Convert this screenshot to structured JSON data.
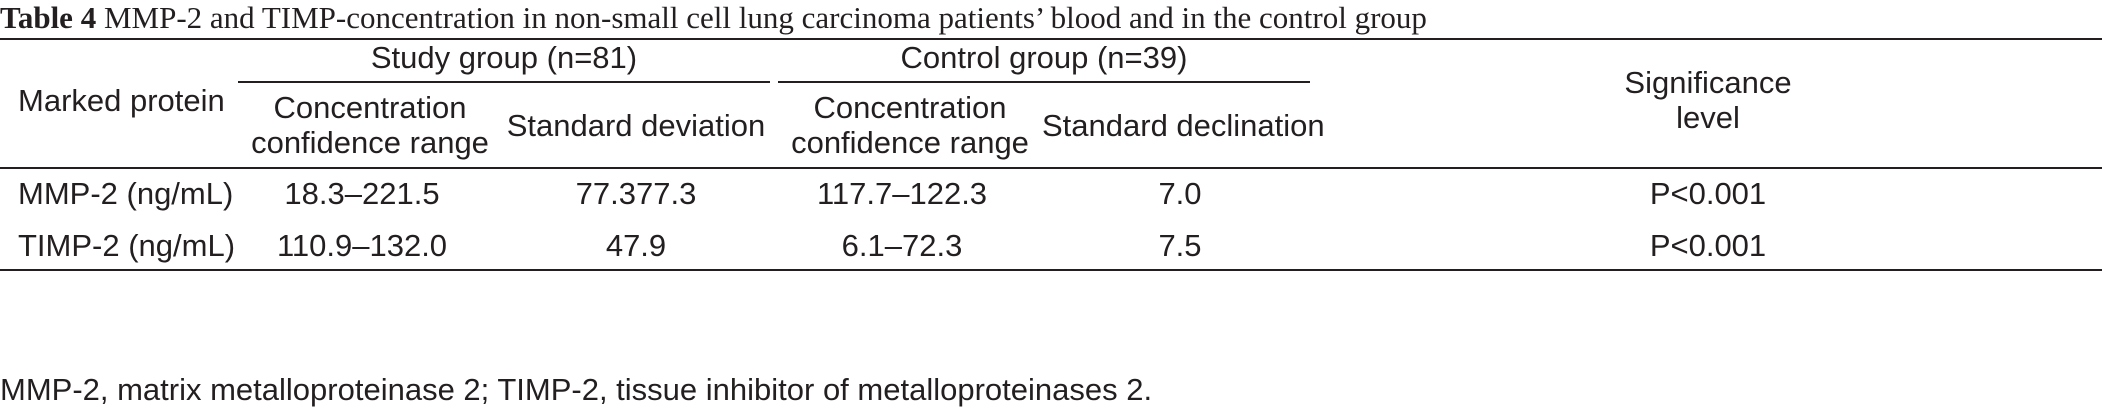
{
  "caption": {
    "label": "Table 4",
    "text": "MMP-2 and TIMP-concentration in non-small cell lung carcinoma patients’ blood and in the control group"
  },
  "table": {
    "header": {
      "marked_protein": "Marked protein",
      "study_group": "Study group (n=81)",
      "control_group": "Control group (n=39)",
      "significance_line1": "Significance",
      "significance_line2": "level",
      "study_conc_line1": "Concentration",
      "study_conc_line2": "confidence range",
      "study_sd": "Standard deviation",
      "control_conc_line1": "Concentration",
      "control_conc_line2": "confidence range",
      "control_sd": "Standard declination"
    },
    "rows": [
      {
        "protein": "MMP-2 (ng/mL)",
        "study_range": "18.3–221.5",
        "study_sd": "77.377.3",
        "control_range": "117.7–122.3",
        "control_sd": "7.0",
        "significance": "P<0.001"
      },
      {
        "protein": "TIMP-2 (ng/mL)",
        "study_range": "110.9–132.0",
        "study_sd": "47.9",
        "control_range": "6.1–72.3",
        "control_sd": "7.5",
        "significance": "P<0.001"
      }
    ]
  },
  "footnote": "MMP-2, matrix metalloproteinase 2; TIMP-2, tissue inhibitor of metalloproteinases 2."
}
